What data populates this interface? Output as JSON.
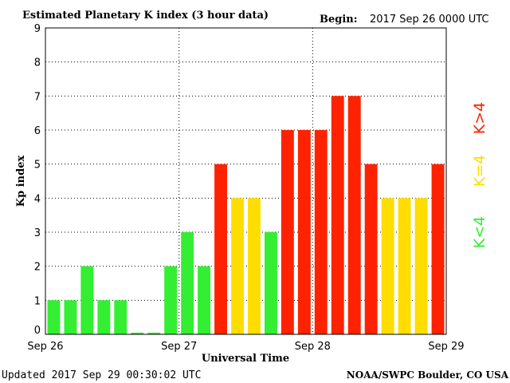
{
  "header": {
    "title": "Estimated Planetary K index (3 hour data)",
    "begin_label": "Begin:",
    "begin_value": "2017 Sep 26 0000 UTC"
  },
  "footer": {
    "updated": "Updated 2017 Sep 29 00:30:02 UTC",
    "source": "NOAA/SWPC Boulder, CO USA"
  },
  "legend": {
    "high": "K>4",
    "equal": "K=4",
    "low": "K<4"
  },
  "colors": {
    "low": "#33ee33",
    "equal": "#ffdd00",
    "high": "#ff2200",
    "grid": "#000000"
  },
  "chart_data": {
    "type": "bar",
    "title": "Estimated Planetary K index (3 hour data)",
    "xlabel": "Universal Time",
    "ylabel": "Kp index",
    "ylim": [
      0,
      9
    ],
    "yticks": [
      "0",
      "1",
      "2",
      "3",
      "4",
      "5",
      "6",
      "7",
      "8",
      "9"
    ],
    "xticks": [
      "Sep 26",
      "Sep 27",
      "Sep 28",
      "Sep 29"
    ],
    "grid": true,
    "values": [
      1,
      1,
      2,
      1,
      1,
      0,
      0,
      2,
      3,
      2,
      5,
      4,
      4,
      3,
      6,
      6,
      6,
      7,
      7,
      5,
      4,
      4,
      4,
      5
    ]
  }
}
